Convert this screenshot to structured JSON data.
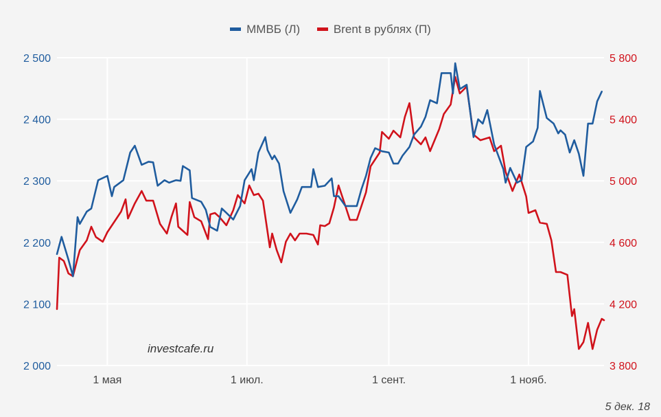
{
  "chart_data": {
    "type": "line",
    "title": "",
    "x_unit": "day of year 2018",
    "xlim": [
      99,
      338
    ],
    "x_ticks": [
      {
        "x": 121,
        "label": "1 мая"
      },
      {
        "x": 182,
        "label": "1 июл."
      },
      {
        "x": 244,
        "label": "1 сент."
      },
      {
        "x": 305,
        "label": "1 нояб."
      }
    ],
    "y_left": {
      "lim": [
        2000,
        2500
      ],
      "ticks": [
        2000,
        2100,
        2200,
        2300,
        2400,
        2500
      ],
      "labels": [
        "2 000",
        "2 100",
        "2 200",
        "2 300",
        "2 400",
        "2 500"
      ],
      "color": "#1f5c9e"
    },
    "y_right": {
      "lim": [
        3800,
        5800
      ],
      "ticks": [
        3800,
        4200,
        4600,
        5000,
        5400,
        5800
      ],
      "labels": [
        "3 800",
        "4 200",
        "4 600",
        "5 000",
        "5 400",
        "5 800"
      ],
      "color": "#d0121b"
    },
    "grid": true,
    "legend_position": "top-center",
    "series": [
      {
        "name": "ММВБ (Л)",
        "axis": "left",
        "color": "#1f5c9e",
        "points": [
          [
            99,
            2181
          ],
          [
            101,
            2209
          ],
          [
            104,
            2172
          ],
          [
            106,
            2145
          ],
          [
            108,
            2241
          ],
          [
            109,
            2230
          ],
          [
            112,
            2250
          ],
          [
            114,
            2255
          ],
          [
            117,
            2301
          ],
          [
            121,
            2308
          ],
          [
            123,
            2275
          ],
          [
            124,
            2290
          ],
          [
            128,
            2301
          ],
          [
            131,
            2346
          ],
          [
            133,
            2357
          ],
          [
            136,
            2326
          ],
          [
            139,
            2331
          ],
          [
            141,
            2330
          ],
          [
            143,
            2292
          ],
          [
            146,
            2301
          ],
          [
            148,
            2297
          ],
          [
            151,
            2301
          ],
          [
            153,
            2300
          ],
          [
            154,
            2324
          ],
          [
            157,
            2317
          ],
          [
            158,
            2272
          ],
          [
            162,
            2266
          ],
          [
            164,
            2253
          ],
          [
            166,
            2225
          ],
          [
            169,
            2219
          ],
          [
            171,
            2255
          ],
          [
            173,
            2248
          ],
          [
            176,
            2237
          ],
          [
            179,
            2259
          ],
          [
            181,
            2301
          ],
          [
            184,
            2319
          ],
          [
            185,
            2301
          ],
          [
            187,
            2346
          ],
          [
            190,
            2371
          ],
          [
            191,
            2350
          ],
          [
            193,
            2335
          ],
          [
            194,
            2341
          ],
          [
            196,
            2328
          ],
          [
            198,
            2283
          ],
          [
            201,
            2248
          ],
          [
            204,
            2270
          ],
          [
            206,
            2290
          ],
          [
            210,
            2290
          ],
          [
            211,
            2319
          ],
          [
            213,
            2290
          ],
          [
            216,
            2292
          ],
          [
            219,
            2304
          ],
          [
            220,
            2275
          ],
          [
            222,
            2275
          ],
          [
            225,
            2259
          ],
          [
            227,
            2259
          ],
          [
            230,
            2259
          ],
          [
            232,
            2286
          ],
          [
            234,
            2308
          ],
          [
            236,
            2337
          ],
          [
            238,
            2353
          ],
          [
            241,
            2348
          ],
          [
            244,
            2346
          ],
          [
            246,
            2328
          ],
          [
            248,
            2328
          ],
          [
            250,
            2341
          ],
          [
            253,
            2355
          ],
          [
            255,
            2375
          ],
          [
            258,
            2388
          ],
          [
            260,
            2404
          ],
          [
            262,
            2431
          ],
          [
            265,
            2426
          ],
          [
            267,
            2475
          ],
          [
            271,
            2475
          ],
          [
            272,
            2442
          ],
          [
            273,
            2491
          ],
          [
            275,
            2449
          ],
          [
            278,
            2456
          ],
          [
            281,
            2371
          ],
          [
            283,
            2400
          ],
          [
            285,
            2393
          ],
          [
            287,
            2415
          ],
          [
            290,
            2359
          ],
          [
            294,
            2319
          ],
          [
            295,
            2297
          ],
          [
            297,
            2321
          ],
          [
            300,
            2297
          ],
          [
            302,
            2301
          ],
          [
            304,
            2355
          ],
          [
            307,
            2364
          ],
          [
            309,
            2386
          ],
          [
            310,
            2446
          ],
          [
            313,
            2402
          ],
          [
            316,
            2393
          ],
          [
            318,
            2377
          ],
          [
            319,
            2382
          ],
          [
            321,
            2375
          ],
          [
            323,
            2346
          ],
          [
            325,
            2366
          ],
          [
            327,
            2344
          ],
          [
            329,
            2308
          ],
          [
            331,
            2393
          ],
          [
            333,
            2393
          ],
          [
            335,
            2429
          ],
          [
            337,
            2445
          ]
        ]
      },
      {
        "name": "Brent в рублях (П)",
        "axis": "right",
        "color": "#d0121b",
        "points": [
          [
            99,
            4166
          ],
          [
            100,
            4501
          ],
          [
            102,
            4479
          ],
          [
            104,
            4398
          ],
          [
            106,
            4380
          ],
          [
            108,
            4497
          ],
          [
            109,
            4550
          ],
          [
            112,
            4613
          ],
          [
            114,
            4702
          ],
          [
            116,
            4635
          ],
          [
            119,
            4604
          ],
          [
            121,
            4666
          ],
          [
            125,
            4755
          ],
          [
            127,
            4800
          ],
          [
            129,
            4880
          ],
          [
            130,
            4755
          ],
          [
            133,
            4853
          ],
          [
            136,
            4934
          ],
          [
            138,
            4871
          ],
          [
            141,
            4871
          ],
          [
            144,
            4720
          ],
          [
            147,
            4657
          ],
          [
            149,
            4764
          ],
          [
            151,
            4853
          ],
          [
            152,
            4702
          ],
          [
            156,
            4648
          ],
          [
            157,
            4862
          ],
          [
            159,
            4764
          ],
          [
            162,
            4737
          ],
          [
            165,
            4621
          ],
          [
            166,
            4782
          ],
          [
            168,
            4791
          ],
          [
            170,
            4764
          ],
          [
            173,
            4711
          ],
          [
            176,
            4809
          ],
          [
            178,
            4907
          ],
          [
            181,
            4853
          ],
          [
            183,
            4970
          ],
          [
            185,
            4907
          ],
          [
            187,
            4916
          ],
          [
            189,
            4871
          ],
          [
            192,
            4568
          ],
          [
            193,
            4657
          ],
          [
            195,
            4550
          ],
          [
            197,
            4470
          ],
          [
            199,
            4604
          ],
          [
            201,
            4657
          ],
          [
            203,
            4613
          ],
          [
            205,
            4657
          ],
          [
            208,
            4657
          ],
          [
            211,
            4648
          ],
          [
            213,
            4586
          ],
          [
            214,
            4711
          ],
          [
            216,
            4706
          ],
          [
            218,
            4724
          ],
          [
            220,
            4827
          ],
          [
            222,
            4970
          ],
          [
            225,
            4836
          ],
          [
            227,
            4746
          ],
          [
            230,
            4746
          ],
          [
            234,
            4925
          ],
          [
            236,
            5094
          ],
          [
            240,
            5184
          ],
          [
            241,
            5318
          ],
          [
            244,
            5273
          ],
          [
            246,
            5326
          ],
          [
            249,
            5282
          ],
          [
            251,
            5416
          ],
          [
            253,
            5505
          ],
          [
            255,
            5282
          ],
          [
            258,
            5237
          ],
          [
            260,
            5282
          ],
          [
            262,
            5193
          ],
          [
            266,
            5336
          ],
          [
            268,
            5434
          ],
          [
            271,
            5496
          ],
          [
            273,
            5675
          ],
          [
            275,
            5568
          ],
          [
            278,
            5612
          ],
          [
            281,
            5300
          ],
          [
            284,
            5264
          ],
          [
            288,
            5282
          ],
          [
            290,
            5193
          ],
          [
            293,
            5228
          ],
          [
            295,
            5059
          ],
          [
            298,
            4934
          ],
          [
            301,
            5041
          ],
          [
            304,
            4898
          ],
          [
            305,
            4791
          ],
          [
            308,
            4809
          ],
          [
            310,
            4728
          ],
          [
            313,
            4720
          ],
          [
            315,
            4613
          ],
          [
            317,
            4407
          ],
          [
            319,
            4407
          ],
          [
            322,
            4389
          ],
          [
            324,
            4121
          ],
          [
            325,
            4166
          ],
          [
            327,
            3907
          ],
          [
            329,
            3952
          ],
          [
            331,
            4077
          ],
          [
            333,
            3907
          ],
          [
            335,
            4032
          ],
          [
            337,
            4103
          ],
          [
            338,
            4094
          ]
        ]
      }
    ]
  },
  "watermark": "investcafe.ru",
  "date_label": "5 дек. 18"
}
